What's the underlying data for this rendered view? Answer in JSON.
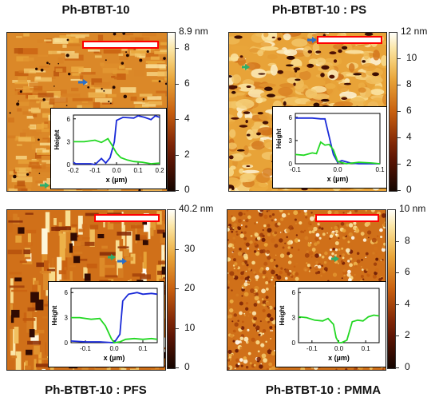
{
  "panels": [
    {
      "title": "Ph-BTBT-10",
      "colorbar": {
        "max_label": "8.9 nm",
        "ticks": [
          "8",
          "6",
          "4",
          "2",
          "0"
        ],
        "tick_values": [
          8,
          6,
          4,
          2,
          0
        ],
        "max": 8.9
      },
      "inset": {
        "ylabel": "Height",
        "xlabel": "x (µm)",
        "yticks": [
          "6",
          "3",
          "0"
        ],
        "xticks": [
          "-0.2",
          "-0.1",
          "0.0",
          "0.1",
          "0.2"
        ],
        "xrange": [
          -0.2,
          0.2
        ],
        "yrange": [
          0,
          6.5
        ]
      },
      "series": [
        {
          "color": "#1a2ad8",
          "x": [
            -0.2,
            -0.19,
            -0.12,
            -0.1,
            -0.07,
            -0.05,
            -0.03,
            -0.01,
            0.0,
            0.03,
            0.08,
            0.1,
            0.13,
            0.16,
            0.18,
            0.2
          ],
          "y": [
            0.3,
            0.1,
            0.1,
            0.0,
            0.8,
            0.2,
            0.9,
            3.0,
            5.8,
            6.2,
            6.1,
            6.4,
            6.2,
            5.9,
            6.4,
            6.2
          ]
        },
        {
          "color": "#22d822",
          "x": [
            -0.2,
            -0.15,
            -0.1,
            -0.07,
            -0.04,
            -0.02,
            0.0,
            0.02,
            0.05,
            0.08,
            0.12,
            0.16,
            0.2
          ],
          "y": [
            3.0,
            3.0,
            3.2,
            2.9,
            3.4,
            2.5,
            1.5,
            0.9,
            0.6,
            0.4,
            0.3,
            0.1,
            0.2
          ]
        }
      ]
    },
    {
      "title": "Ph-BTBT-10 : PS",
      "colorbar": {
        "max_label": "12 nm",
        "ticks": [
          "10",
          "8",
          "6",
          "4",
          "2",
          "0"
        ],
        "tick_values": [
          10,
          8,
          6,
          4,
          2,
          0
        ],
        "max": 12
      },
      "inset": {
        "ylabel": "Height",
        "xlabel": "x (µm)",
        "yticks": [
          "6",
          "3",
          "0"
        ],
        "xticks": [
          "-0.1",
          "0.0",
          "0.1"
        ],
        "xrange": [
          -0.1,
          0.1
        ],
        "yrange": [
          0,
          6.5
        ]
      },
      "series": [
        {
          "color": "#1a2ad8",
          "x": [
            -0.1,
            -0.08,
            -0.06,
            -0.04,
            -0.03,
            -0.02,
            -0.01,
            0.0,
            0.01,
            0.03,
            0.05,
            0.08,
            0.1
          ],
          "y": [
            5.9,
            5.9,
            5.9,
            5.8,
            5.8,
            3.5,
            1.2,
            0.2,
            0.4,
            0.1,
            0.0,
            0.0,
            0.0
          ]
        },
        {
          "color": "#22d822",
          "x": [
            -0.1,
            -0.08,
            -0.06,
            -0.05,
            -0.04,
            -0.03,
            -0.02,
            -0.01,
            0.0,
            0.02,
            0.05,
            0.08,
            0.1
          ],
          "y": [
            1.2,
            1.1,
            1.4,
            1.3,
            2.8,
            2.4,
            2.5,
            1.8,
            0.3,
            0.0,
            0.2,
            0.1,
            0.0
          ]
        }
      ]
    },
    {
      "title": "Ph-BTBT-10 : PFS",
      "colorbar": {
        "max_label": "40.2 nm",
        "ticks": [
          "30",
          "20",
          "10",
          "0"
        ],
        "tick_values": [
          30,
          20,
          10,
          0
        ],
        "max": 40.2
      },
      "inset": {
        "ylabel": "Height",
        "xlabel": "x (µm)",
        "yticks": [
          "6",
          "3",
          "0"
        ],
        "xticks": [
          "-0.1",
          "0.0",
          "0.1"
        ],
        "xrange": [
          -0.15,
          0.15
        ],
        "yrange": [
          0,
          6.5
        ]
      },
      "series": [
        {
          "color": "#1a2ad8",
          "x": [
            -0.15,
            -0.1,
            -0.05,
            0.0,
            0.02,
            0.03,
            0.05,
            0.08,
            0.1,
            0.13,
            0.15
          ],
          "y": [
            0.2,
            0.1,
            0.1,
            0.0,
            1.0,
            5.0,
            5.8,
            6.0,
            5.8,
            5.9,
            5.8
          ]
        },
        {
          "color": "#22d822",
          "x": [
            -0.15,
            -0.12,
            -0.08,
            -0.05,
            -0.03,
            -0.01,
            0.0,
            0.02,
            0.04,
            0.07,
            0.1,
            0.13,
            0.15
          ],
          "y": [
            3.0,
            3.0,
            2.8,
            2.9,
            2.0,
            0.5,
            0.0,
            0.1,
            0.4,
            0.5,
            0.4,
            0.5,
            0.4
          ]
        }
      ]
    },
    {
      "title": "Ph-BTBT-10 : PMMA",
      "colorbar": {
        "max_label": "10 nm",
        "ticks": [
          "8",
          "6",
          "4",
          "2",
          "0"
        ],
        "tick_values": [
          8,
          6,
          4,
          2,
          0
        ],
        "max": 10
      },
      "inset": {
        "ylabel": "Height",
        "xlabel": "x (µm)",
        "yticks": [
          "6",
          "3",
          "0"
        ],
        "xticks": [
          "-0.1",
          "0.0",
          "0.1"
        ],
        "xrange": [
          -0.15,
          0.15
        ],
        "yrange": [
          0,
          6.5
        ]
      },
      "series": [
        {
          "color": "#22d822",
          "x": [
            -0.15,
            -0.12,
            -0.09,
            -0.06,
            -0.04,
            -0.02,
            -0.01,
            0.0,
            0.01,
            0.03,
            0.05,
            0.07,
            0.09,
            0.11,
            0.13,
            0.15
          ],
          "y": [
            3.1,
            3.0,
            2.7,
            2.6,
            2.9,
            2.2,
            0.6,
            0.0,
            0.0,
            0.3,
            2.5,
            2.7,
            2.6,
            3.1,
            3.3,
            3.2
          ]
        }
      ]
    }
  ],
  "colors": {
    "scalebar_border": "#ff0000",
    "arrow_blue": "#2a6fc9",
    "arrow_green": "#2fae6a",
    "profile_blue": "#1a2ad8",
    "profile_green": "#22d822"
  }
}
